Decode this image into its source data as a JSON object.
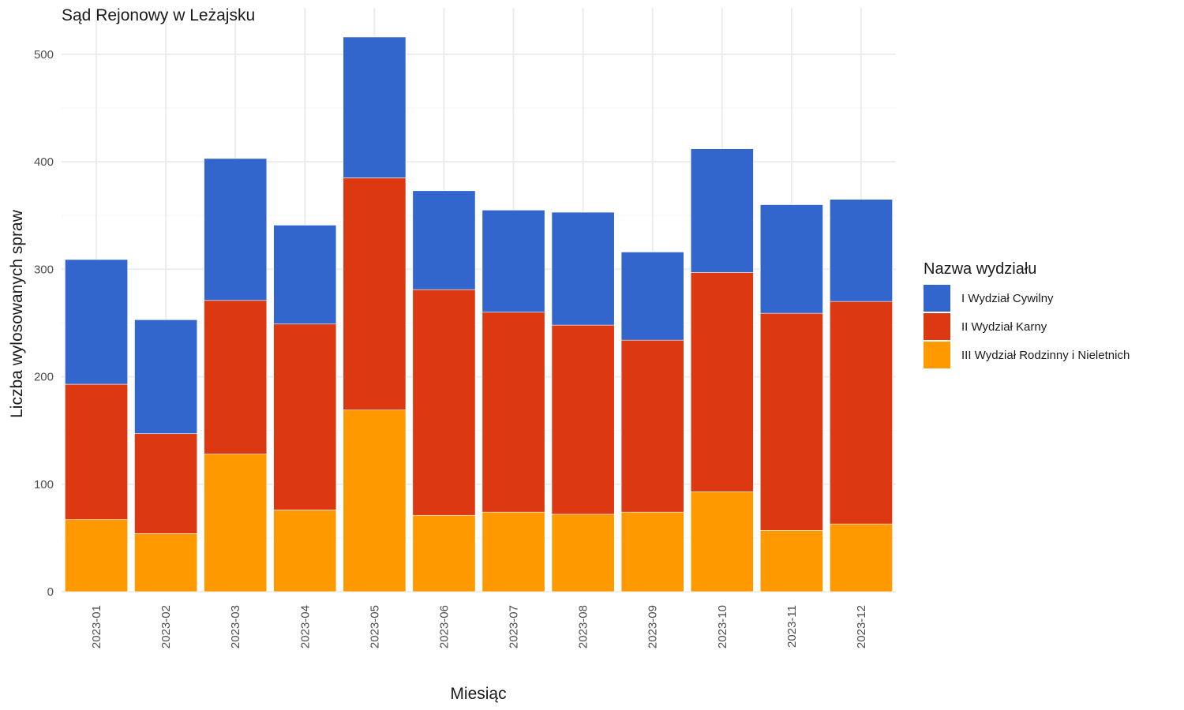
{
  "chart_data": {
    "type": "bar",
    "stacked": true,
    "title": "Sąd Rejonowy w Leżajsku",
    "xlabel": "Miesiąc",
    "ylabel": "Liczba wylosowanych spraw",
    "ylim": [
      0,
      530
    ],
    "yticks": [
      0,
      100,
      200,
      300,
      400,
      500
    ],
    "grid": true,
    "legend": {
      "title": "Nazwa wydziału",
      "position": "right"
    },
    "categories": [
      "2023-01",
      "2023-02",
      "2023-03",
      "2023-04",
      "2023-05",
      "2023-06",
      "2023-07",
      "2023-08",
      "2023-09",
      "2023-10",
      "2023-11",
      "2023-12"
    ],
    "series": [
      {
        "name": "I Wydział Cywilny",
        "color": "#3366cc",
        "values": [
          116,
          106,
          132,
          92,
          131,
          92,
          95,
          105,
          82,
          115,
          101,
          95
        ]
      },
      {
        "name": "II Wydział Karny",
        "color": "#dc3912",
        "values": [
          126,
          93,
          143,
          173,
          216,
          210,
          186,
          176,
          160,
          204,
          202,
          207
        ]
      },
      {
        "name": "III Wydział Rodzinny i Nieletnich",
        "color": "#ff9900",
        "values": [
          67,
          54,
          128,
          76,
          169,
          71,
          74,
          72,
          74,
          93,
          57,
          63
        ]
      }
    ],
    "stack_order_bottom_to_top": [
      "III Wydział Rodzinny i Nieletnich",
      "II Wydział Karny",
      "I Wydział Cywilny"
    ]
  }
}
